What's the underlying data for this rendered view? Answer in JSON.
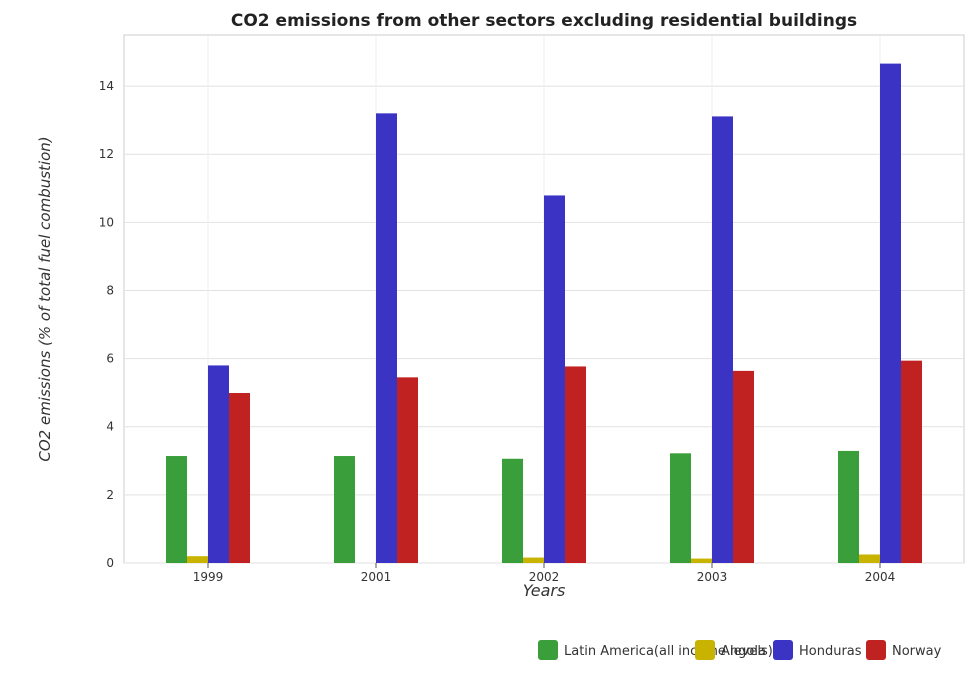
{
  "chart_data": {
    "type": "bar",
    "title": "CO2 emissions from other sectors excluding residential buildings",
    "xlabel": "Years",
    "ylabel": "CO2 emissions (% of total fuel combustion)",
    "categories": [
      "1999",
      "2001",
      "2002",
      "2003",
      "2004"
    ],
    "ylim": [
      0,
      15.5
    ],
    "yticks": [
      0,
      2,
      4,
      6,
      8,
      10,
      12,
      14
    ],
    "grid": true,
    "legend_position": "bottom-right",
    "series": [
      {
        "name": "Latin America(all income levels)",
        "color": "#3a9e3a",
        "values": [
          3.14,
          3.14,
          3.06,
          3.22,
          3.29
        ]
      },
      {
        "name": "Angola",
        "color": "#c8b400",
        "values": [
          0.2,
          0.0,
          0.16,
          0.13,
          0.25
        ]
      },
      {
        "name": "Honduras",
        "color": "#3a33c4",
        "values": [
          5.8,
          13.2,
          10.79,
          13.11,
          14.66
        ]
      },
      {
        "name": "Norway",
        "color": "#c02222",
        "values": [
          4.99,
          5.45,
          5.77,
          5.64,
          5.94
        ]
      }
    ]
  }
}
